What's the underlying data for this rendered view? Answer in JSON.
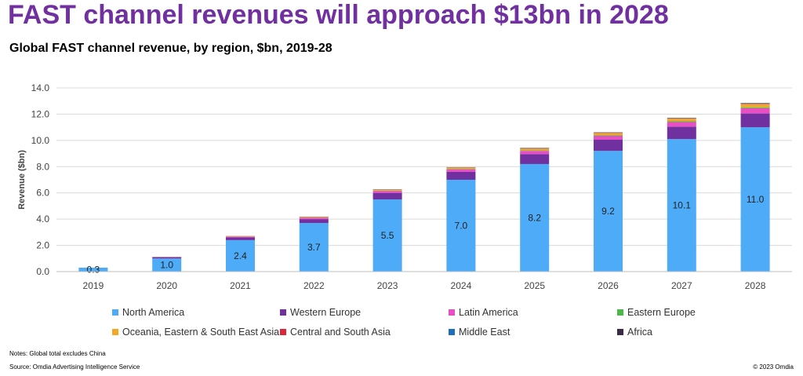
{
  "headline": "FAST channel revenues will approach $13bn in 2028",
  "notes": "Notes: Global total excludes China",
  "source": "Source: Omdia Advertising Intelligence Service",
  "copyright": "© 2023 Omdia",
  "chart_data": {
    "type": "bar",
    "stacked": true,
    "title": "Global FAST channel revenue, by region, $bn, 2019-28",
    "xlabel": "",
    "ylabel": "Revenue ($bn)",
    "ylim": [
      0,
      14
    ],
    "yticks": [
      "0.0",
      "2.0",
      "4.0",
      "6.0",
      "8.0",
      "10.0",
      "12.0",
      "14.0"
    ],
    "grid": true,
    "legend_position": "bottom",
    "categories": [
      "2019",
      "2020",
      "2021",
      "2022",
      "2023",
      "2024",
      "2025",
      "2026",
      "2027",
      "2028"
    ],
    "series": [
      {
        "name": "North America",
        "color": "#4dabf7",
        "values": [
          0.3,
          1.0,
          2.4,
          3.7,
          5.5,
          7.0,
          8.2,
          9.2,
          10.1,
          11.0
        ],
        "labels": [
          "0.3",
          "1.0",
          "2.4",
          "3.7",
          "5.5",
          "7.0",
          "8.2",
          "9.2",
          "10.1",
          "11.0"
        ]
      },
      {
        "name": "Western Europe",
        "color": "#7030a0",
        "values": [
          0.0,
          0.1,
          0.2,
          0.3,
          0.5,
          0.6,
          0.75,
          0.85,
          0.95,
          1.05
        ]
      },
      {
        "name": "Latin America",
        "color": "#e84fc4",
        "values": [
          0.0,
          0.02,
          0.06,
          0.1,
          0.15,
          0.2,
          0.25,
          0.3,
          0.35,
          0.4
        ]
      },
      {
        "name": "Eastern Europe",
        "color": "#4cb848",
        "values": [
          0.0,
          0.0,
          0.01,
          0.01,
          0.02,
          0.03,
          0.04,
          0.05,
          0.06,
          0.07
        ]
      },
      {
        "name": "Oceania, Eastern & South East Asia",
        "color": "#f5a623",
        "values": [
          0.0,
          0.01,
          0.03,
          0.05,
          0.08,
          0.1,
          0.13,
          0.16,
          0.2,
          0.24
        ]
      },
      {
        "name": "Central and South Asia",
        "color": "#e0253a",
        "values": [
          0.0,
          0.0,
          0.005,
          0.01,
          0.01,
          0.01,
          0.02,
          0.02,
          0.02,
          0.03
        ]
      },
      {
        "name": "Middle East",
        "color": "#1f6fb5",
        "values": [
          0.0,
          0.0,
          0.005,
          0.01,
          0.01,
          0.01,
          0.02,
          0.02,
          0.02,
          0.03
        ]
      },
      {
        "name": "Africa",
        "color": "#3a2a4a",
        "values": [
          0.0,
          0.0,
          0.005,
          0.01,
          0.01,
          0.01,
          0.02,
          0.02,
          0.02,
          0.03
        ]
      }
    ]
  }
}
